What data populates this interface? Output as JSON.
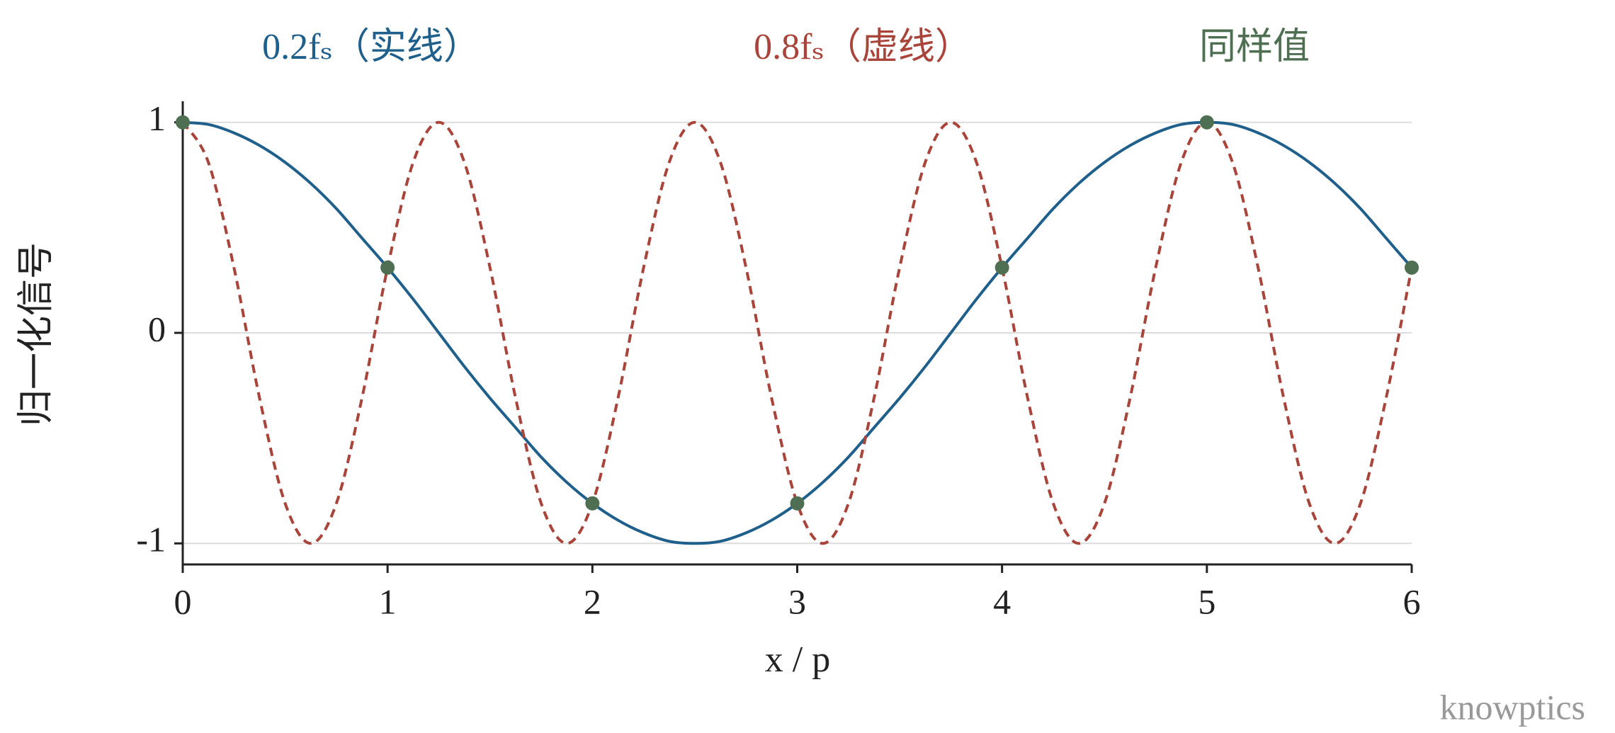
{
  "chart_data": {
    "type": "line",
    "ylabel": "归一化信号",
    "xlabel": "x / p",
    "watermark": "knowptics",
    "xlim": [
      0,
      6
    ],
    "ylim": [
      -1.1,
      1.1
    ],
    "xticks": [
      0,
      1,
      2,
      3,
      4,
      5,
      6
    ],
    "yticks": [
      -1,
      0,
      1
    ],
    "grid": true,
    "x": [
      0,
      0.125,
      0.25,
      0.375,
      0.5,
      0.625,
      0.75,
      0.875,
      1,
      1.125,
      1.25,
      1.375,
      1.5,
      1.625,
      1.75,
      1.875,
      2,
      2.125,
      2.25,
      2.375,
      2.5,
      2.625,
      2.75,
      2.875,
      3,
      3.125,
      3.25,
      3.375,
      3.5,
      3.625,
      3.75,
      3.875,
      4,
      4.125,
      4.25,
      4.375,
      4.5,
      4.625,
      4.75,
      4.875,
      5,
      5.125,
      5.25,
      5.375,
      5.5,
      5.625,
      5.75,
      5.875,
      6
    ],
    "series": [
      {
        "name": "0.2fₛ（实线）",
        "color": "#1f5f8b",
        "line_style": "solid",
        "values": [
          1,
          0.99,
          0.95,
          0.89,
          0.81,
          0.71,
          0.59,
          0.45,
          0.31,
          0.16,
          0,
          -0.16,
          -0.31,
          -0.45,
          -0.59,
          -0.71,
          -0.81,
          -0.89,
          -0.95,
          -0.99,
          -1,
          -0.99,
          -0.95,
          -0.89,
          -0.81,
          -0.71,
          -0.59,
          -0.45,
          -0.31,
          -0.16,
          0,
          0.16,
          0.31,
          0.45,
          0.59,
          0.71,
          0.81,
          0.89,
          0.95,
          0.99,
          1,
          0.99,
          0.95,
          0.89,
          0.81,
          0.71,
          0.59,
          0.45,
          0.31
        ]
      },
      {
        "name": "0.8fₛ（虚线）",
        "color": "#a8443a",
        "line_style": "dashed",
        "values": [
          1,
          0.81,
          0.31,
          -0.31,
          -0.81,
          -1,
          -0.81,
          -0.31,
          0.31,
          0.81,
          1,
          0.81,
          0.31,
          -0.31,
          -0.81,
          -1,
          -0.81,
          -0.31,
          0.31,
          0.81,
          1,
          0.81,
          0.31,
          -0.31,
          -0.81,
          -1,
          -0.81,
          -0.31,
          0.31,
          0.81,
          1,
          0.81,
          0.31,
          -0.31,
          -0.81,
          -1,
          -0.81,
          -0.31,
          0.31,
          0.81,
          1,
          0.81,
          0.31,
          -0.31,
          -0.81,
          -1,
          -0.81,
          -0.31,
          0.31
        ]
      },
      {
        "name": "同样值",
        "color": "#4f6f52",
        "type": "scatter",
        "x": [
          0,
          1,
          2,
          3,
          4,
          5,
          6
        ],
        "values": [
          1,
          0.31,
          -0.81,
          -0.81,
          0.31,
          1,
          0.31
        ]
      }
    ]
  }
}
